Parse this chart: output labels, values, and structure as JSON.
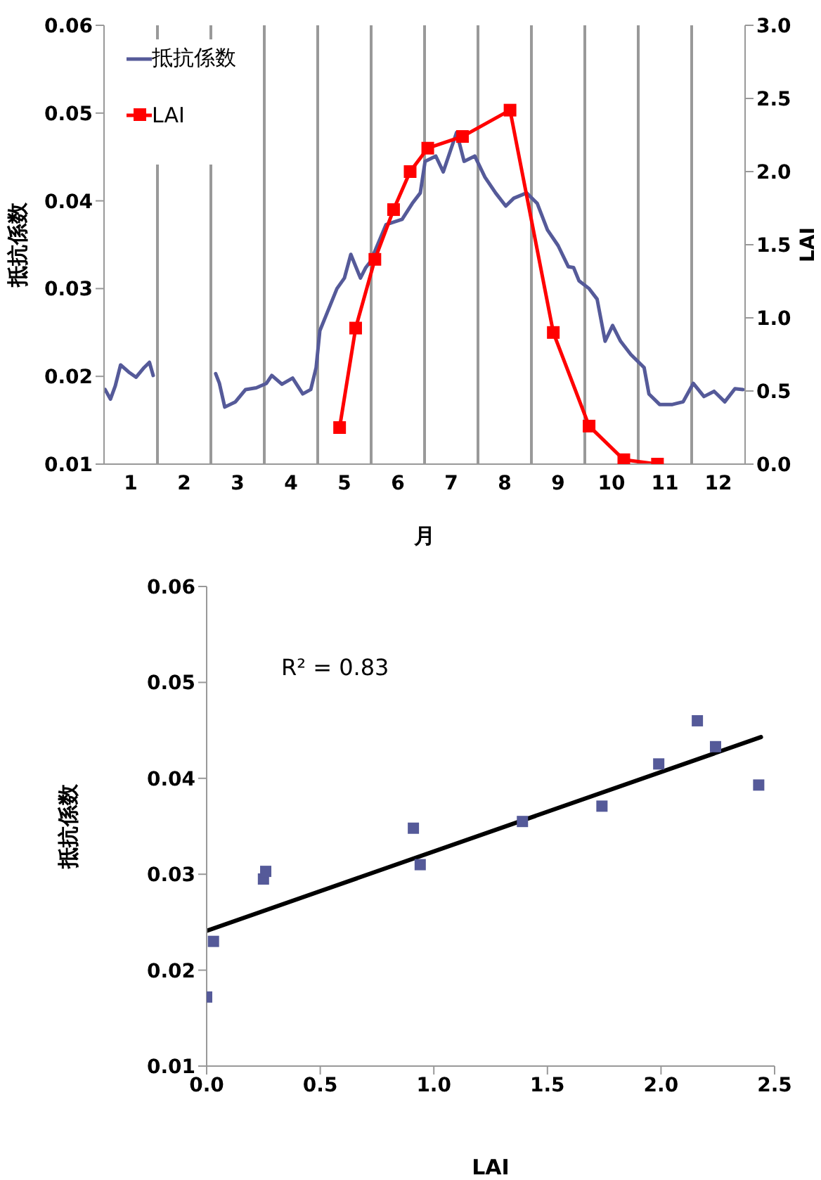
{
  "chart_data": [
    {
      "type": "line",
      "xlabel": "月",
      "ylabel": "抵抗係数",
      "y2label": "LAI",
      "xlim": [
        0,
        12
      ],
      "xticks": [
        {
          "value": 0.5,
          "label": "1"
        },
        {
          "value": 1.5,
          "label": "2"
        },
        {
          "value": 2.5,
          "label": "3"
        },
        {
          "value": 3.5,
          "label": "4"
        },
        {
          "value": 4.5,
          "label": "5"
        },
        {
          "value": 5.5,
          "label": "6"
        },
        {
          "value": 6.5,
          "label": "7"
        },
        {
          "value": 7.5,
          "label": "8"
        },
        {
          "value": 8.5,
          "label": "9"
        },
        {
          "value": 9.5,
          "label": "10"
        },
        {
          "value": 10.5,
          "label": "11"
        },
        {
          "value": 11.5,
          "label": "12"
        }
      ],
      "ylim": [
        0.01,
        0.06
      ],
      "yticks": [
        0.01,
        0.02,
        0.03,
        0.04,
        0.05,
        0.06
      ],
      "y2lim": [
        0,
        3
      ],
      "y2ticks": [
        {
          "value": 0,
          "label": "0.0"
        },
        {
          "value": 0.5,
          "label": "0.5"
        },
        {
          "value": 1,
          "label": "1.0"
        },
        {
          "value": 1.5,
          "label": "1.5"
        },
        {
          "value": 2,
          "label": "2.0"
        },
        {
          "value": 2.5,
          "label": "2.5"
        },
        {
          "value": 3,
          "label": "3.0"
        }
      ],
      "legend": "top left",
      "grid": false,
      "ref_lines": [
        {
          "axis": "x",
          "value": 1,
          "color": "#999999"
        },
        {
          "axis": "x",
          "value": 2,
          "color": "#999999"
        },
        {
          "axis": "x",
          "value": 3,
          "color": "#999999"
        },
        {
          "axis": "x",
          "value": 4,
          "color": "#999999"
        },
        {
          "axis": "x",
          "value": 5,
          "color": "#999999"
        },
        {
          "axis": "x",
          "value": 6,
          "color": "#999999"
        },
        {
          "axis": "x",
          "value": 7,
          "color": "#999999"
        },
        {
          "axis": "x",
          "value": 8,
          "color": "#999999"
        },
        {
          "axis": "x",
          "value": 9,
          "color": "#999999"
        },
        {
          "axis": "x",
          "value": 10,
          "color": "#999999"
        },
        {
          "axis": "x",
          "value": 11,
          "color": "#999999"
        }
      ],
      "series": [
        {
          "name": "抵抗係数",
          "color": "#555a99",
          "marker": "none",
          "x": [
            0.02,
            0.12,
            0.21,
            0.31,
            0.46,
            0.6,
            0.75,
            0.85,
            0.92,
            1.5,
            2.09,
            2.16,
            2.26,
            2.46,
            2.65,
            2.85,
            3.04,
            3.14,
            3.33,
            3.53,
            3.72,
            3.87,
            3.97,
            4.04,
            4.16,
            4.36,
            4.5,
            4.62,
            4.8,
            4.9,
            4.99,
            5.28,
            5.58,
            5.77,
            5.92,
            6.01,
            6.21,
            6.35,
            6.6,
            6.74,
            6.94,
            7.13,
            7.33,
            7.52,
            7.67,
            7.91,
            8.11,
            8.3,
            8.5,
            8.69,
            8.79,
            8.89,
            9.08,
            9.23,
            9.38,
            9.52,
            9.67,
            9.86,
            10.11,
            10.2,
            10.4,
            10.64,
            10.84,
            11.03,
            11.23,
            11.42,
            11.62,
            11.81,
            11.96
          ],
          "values": [
            0.0185,
            0.0174,
            0.0189,
            0.0213,
            0.0205,
            0.0199,
            0.021,
            0.0216,
            0.0201,
            null,
            0.0203,
            0.0192,
            0.0165,
            0.0171,
            0.0185,
            0.0187,
            0.0192,
            0.0201,
            0.0191,
            0.0198,
            0.018,
            0.0185,
            0.021,
            0.0252,
            0.027,
            0.03,
            0.0312,
            0.0339,
            0.0312,
            0.0324,
            0.0331,
            0.0373,
            0.0379,
            0.0397,
            0.0409,
            0.0445,
            0.0451,
            0.0433,
            0.0478,
            0.0445,
            0.0451,
            0.0427,
            0.0409,
            0.0394,
            0.0403,
            0.0409,
            0.0397,
            0.0367,
            0.0349,
            0.0325,
            0.0324,
            0.0309,
            0.03,
            0.0288,
            0.024,
            0.0258,
            0.024,
            0.0225,
            0.021,
            0.018,
            0.0168,
            0.0168,
            0.0171,
            0.0192,
            0.0177,
            0.0183,
            0.0171,
            0.0186,
            0.0185
          ]
        },
        {
          "name": "LAI",
          "axis": "y2",
          "color": "#ff0000",
          "marker": "square",
          "x": [
            4.41,
            4.71,
            5.07,
            5.42,
            5.73,
            6.06,
            6.71,
            7.6,
            8.41,
            9.08,
            9.73,
            10.36
          ],
          "values": [
            0.25,
            0.93,
            1.4,
            1.74,
            2.0,
            2.16,
            2.24,
            2.42,
            0.9,
            0.26,
            0.03,
            0.0
          ]
        }
      ]
    },
    {
      "type": "scatter",
      "xlabel": "LAI",
      "ylabel": "抵抗係数",
      "annotations": [
        "R² = 0.83"
      ],
      "xlim": [
        0,
        2.5
      ],
      "xticks": [
        {
          "value": 0,
          "label": "0.0"
        },
        {
          "value": 0.5,
          "label": "0.5"
        },
        {
          "value": 1,
          "label": "1.0"
        },
        {
          "value": 1.5,
          "label": "1.5"
        },
        {
          "value": 2,
          "label": "2.0"
        },
        {
          "value": 2.5,
          "label": "2.5"
        }
      ],
      "ylim": [
        0.01,
        0.06
      ],
      "yticks": [
        0.01,
        0.02,
        0.03,
        0.04,
        0.05,
        0.06
      ],
      "grid": false,
      "legend": false,
      "series": [
        {
          "color": "#555a99",
          "marker": "square",
          "x": [
            0.0,
            0.03,
            0.25,
            0.26,
            0.91,
            0.94,
            1.39,
            1.74,
            1.99,
            2.16,
            2.24,
            2.43
          ],
          "values": [
            0.0172,
            0.023,
            0.0295,
            0.0303,
            0.0348,
            0.031,
            0.0355,
            0.0371,
            0.0415,
            0.046,
            0.0433,
            0.0393
          ]
        },
        {
          "type": "line",
          "color": "#000000",
          "marker": "none",
          "x": [
            0.0,
            2.44
          ],
          "values": [
            0.0241,
            0.0443
          ]
        }
      ]
    }
  ]
}
